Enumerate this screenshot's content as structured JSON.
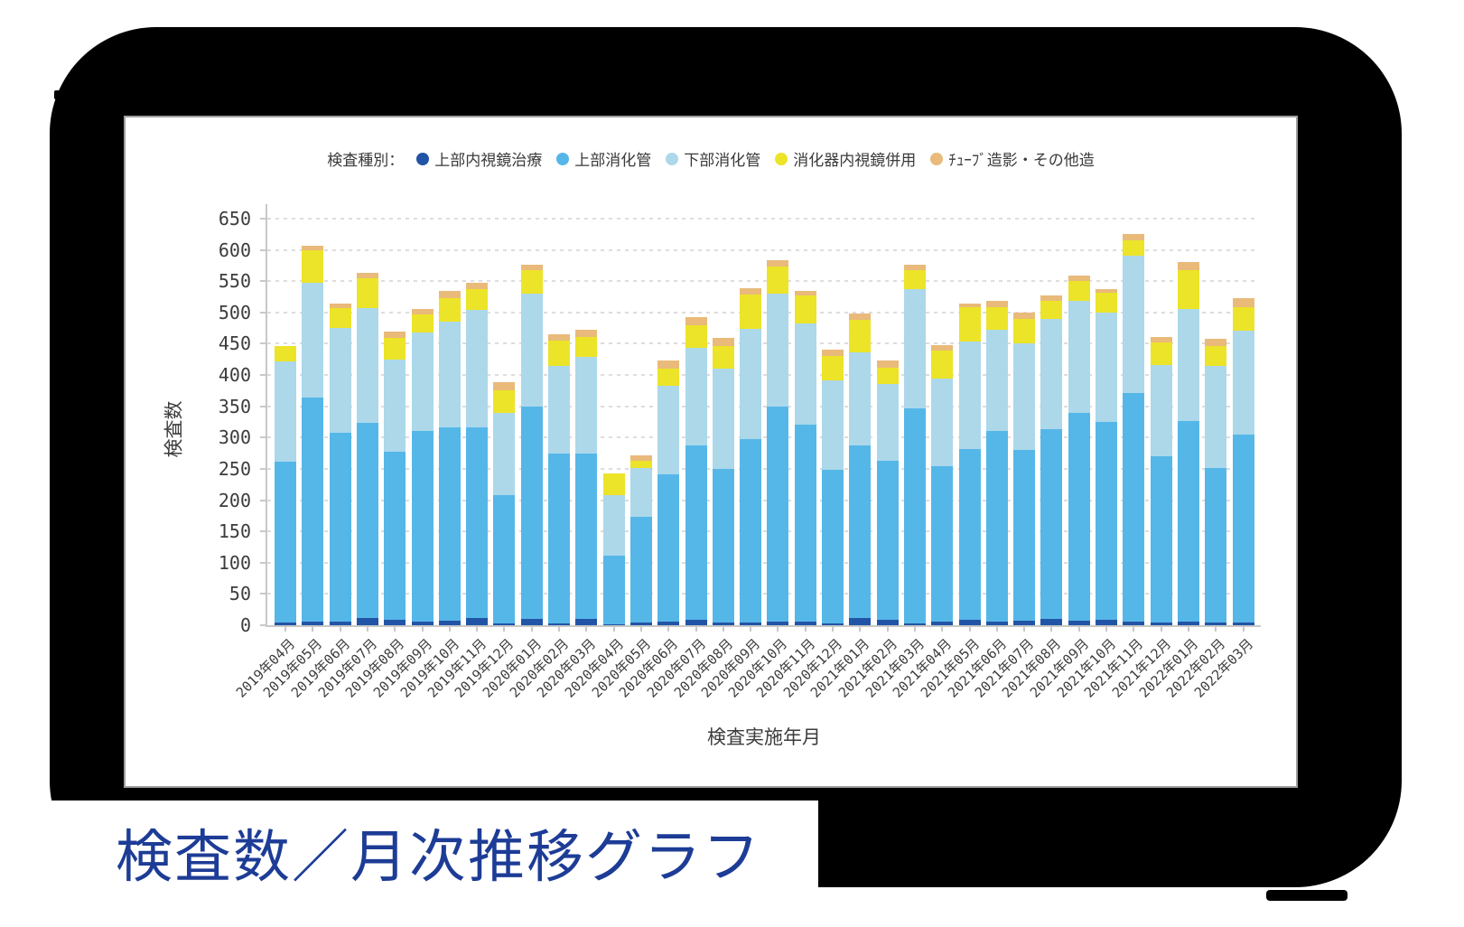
{
  "page_title": "検査数／月次推移グラフ",
  "legend": {
    "prefix": "検査種別：",
    "items": [
      {
        "label": "上部内視鏡治療",
        "color": "#2154a6"
      },
      {
        "label": "上部消化管",
        "color": "#55b7e8"
      },
      {
        "label": "下部消化管",
        "color": "#acd8ea"
      },
      {
        "label": "消化器内視鏡併用",
        "color": "#ece428"
      },
      {
        "label": "ﾁｭｰﾌﾞ造影・その他造",
        "color": "#e9ba7a"
      }
    ]
  },
  "chart_data": {
    "type": "bar",
    "stacked": true,
    "xlabel": "検査実施年月",
    "ylabel": "検査数",
    "ylim": [
      0,
      650
    ],
    "ytick_step": 50,
    "grid": true,
    "legend_position": "top",
    "categories": [
      "2019年04月",
      "2019年05月",
      "2019年06月",
      "2019年07月",
      "2019年08月",
      "2019年09月",
      "2019年10月",
      "2019年11月",
      "2019年12月",
      "2020年01月",
      "2020年02月",
      "2020年03月",
      "2020年04月",
      "2020年05月",
      "2020年06月",
      "2020年07月",
      "2020年08月",
      "2020年09月",
      "2020年10月",
      "2020年11月",
      "2020年12月",
      "2021年01月",
      "2021年02月",
      "2021年03月",
      "2021年04月",
      "2021年05月",
      "2021年06月",
      "2021年07月",
      "2021年08月",
      "2021年09月",
      "2021年10月",
      "2021年11月",
      "2021年12月",
      "2022年01月",
      "2022年02月",
      "2022年03月"
    ],
    "series": [
      {
        "name": "上部内視鏡治療",
        "color": "#2154a6",
        "values": [
          5,
          6,
          6,
          12,
          8,
          6,
          7,
          11,
          3,
          10,
          3,
          10,
          2,
          4,
          6,
          8,
          5,
          5,
          6,
          6,
          3,
          12,
          8,
          3,
          6,
          9,
          6,
          7,
          10,
          7,
          9,
          6,
          5,
          6,
          4,
          5
        ]
      },
      {
        "name": "上部消化管",
        "color": "#55b7e8",
        "values": [
          257,
          358,
          302,
          311,
          269,
          305,
          309,
          305,
          205,
          340,
          271,
          265,
          109,
          170,
          235,
          279,
          245,
          292,
          344,
          315,
          246,
          275,
          255,
          344,
          248,
          273,
          305,
          273,
          304,
          332,
          316,
          365,
          265,
          320,
          247,
          300
        ]
      },
      {
        "name": "下部消化管",
        "color": "#acd8ea",
        "values": [
          160,
          184,
          167,
          184,
          148,
          157,
          169,
          188,
          132,
          180,
          141,
          154,
          97,
          77,
          142,
          157,
          160,
          177,
          180,
          161,
          142,
          149,
          123,
          190,
          140,
          171,
          161,
          171,
          175,
          179,
          175,
          220,
          146,
          179,
          164,
          166
        ]
      },
      {
        "name": "消化器内視鏡併用",
        "color": "#ece428",
        "values": [
          25,
          52,
          32,
          48,
          35,
          29,
          38,
          34,
          36,
          37,
          40,
          32,
          35,
          12,
          27,
          36,
          37,
          55,
          44,
          45,
          40,
          53,
          26,
          31,
          45,
          55,
          37,
          39,
          29,
          33,
          31,
          25,
          36,
          62,
          32,
          38
        ]
      },
      {
        "name": "ﾁｭｰﾌﾞ造影・その他造",
        "color": "#e9ba7a",
        "values": [
          0,
          7,
          8,
          8,
          10,
          8,
          11,
          10,
          12,
          10,
          10,
          11,
          0,
          9,
          14,
          12,
          13,
          10,
          9,
          8,
          9,
          10,
          11,
          9,
          9,
          7,
          9,
          10,
          9,
          8,
          7,
          9,
          9,
          14,
          11,
          14
        ]
      }
    ]
  }
}
